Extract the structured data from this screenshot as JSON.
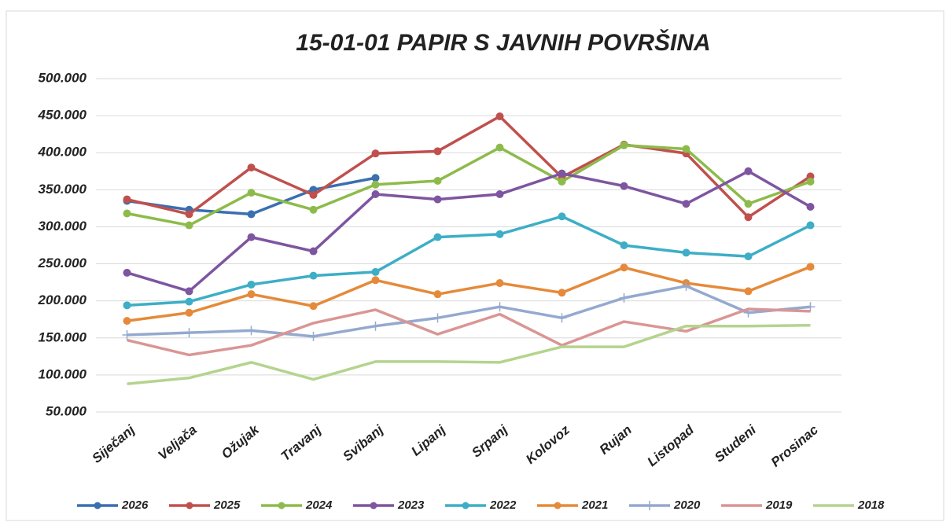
{
  "chart_data": {
    "type": "line",
    "title": "15-01-01 PAPIR S JAVNIH POVRŠINA",
    "categories": [
      "Siječanj",
      "Veljača",
      "Ožujak",
      "Travanj",
      "Svibanj",
      "Lipanj",
      "Srpanj",
      "Kolovoz",
      "Rujan",
      "Listopad",
      "Studeni",
      "Prosinac"
    ],
    "ylim": [
      50000,
      500000
    ],
    "yticks": [
      {
        "value": 50000,
        "label": "50.000"
      },
      {
        "value": 100000,
        "label": "100.000"
      },
      {
        "value": 150000,
        "label": "150.000"
      },
      {
        "value": 200000,
        "label": "200.000"
      },
      {
        "value": 250000,
        "label": "250.000"
      },
      {
        "value": 300000,
        "label": "300.000"
      },
      {
        "value": 350000,
        "label": "350.000"
      },
      {
        "value": 400000,
        "label": "400.000"
      },
      {
        "value": 450000,
        "label": "450.000"
      },
      {
        "value": 500000,
        "label": "500.000"
      }
    ],
    "grid": true,
    "legend": "bottom",
    "series": [
      {
        "name": "2026",
        "color": "#3a6fb0",
        "marker": "circle",
        "values": [
          335000,
          323000,
          317000,
          350000,
          366000,
          null,
          null,
          null,
          null,
          null,
          null,
          null
        ]
      },
      {
        "name": "2025",
        "color": "#c0504d",
        "marker": "circle",
        "values": [
          337000,
          317000,
          380000,
          343000,
          399000,
          402000,
          449000,
          367000,
          411000,
          399000,
          313000,
          368000
        ]
      },
      {
        "name": "2024",
        "color": "#8dbb4b",
        "marker": "circle",
        "values": [
          318000,
          302000,
          346000,
          323000,
          357000,
          362000,
          407000,
          361000,
          410000,
          405000,
          331000,
          361000
        ]
      },
      {
        "name": "2023",
        "color": "#7e55a0",
        "marker": "circle",
        "values": [
          238000,
          213000,
          286000,
          267000,
          344000,
          337000,
          344000,
          372000,
          355000,
          331000,
          375000,
          327000
        ]
      },
      {
        "name": "2022",
        "color": "#3daec6",
        "marker": "circle",
        "values": [
          194000,
          199000,
          222000,
          234000,
          239000,
          286000,
          290000,
          314000,
          275000,
          265000,
          260000,
          302000
        ]
      },
      {
        "name": "2021",
        "color": "#e58a3a",
        "marker": "circle",
        "values": [
          173000,
          184000,
          209000,
          193000,
          228000,
          209000,
          224000,
          211000,
          245000,
          224000,
          213000,
          246000
        ]
      },
      {
        "name": "2020",
        "color": "#94a9cf",
        "marker": "plus",
        "values": [
          154000,
          157000,
          160000,
          152000,
          166000,
          177000,
          192000,
          177000,
          204000,
          220000,
          184000,
          192000
        ]
      },
      {
        "name": "2019",
        "color": "#d99694",
        "marker": "none",
        "values": [
          147000,
          127000,
          140000,
          170000,
          188000,
          155000,
          182000,
          140000,
          172000,
          159000,
          189000,
          186000
        ]
      },
      {
        "name": "2018",
        "color": "#b4d48e",
        "marker": "none",
        "values": [
          88000,
          96000,
          117000,
          94000,
          118000,
          118000,
          117000,
          138000,
          138000,
          166000,
          166000,
          167000
        ]
      }
    ]
  }
}
